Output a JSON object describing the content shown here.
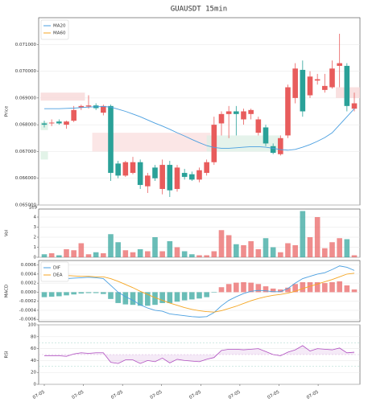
{
  "chart_data": [
    {
      "type": "candlestick",
      "title": "GUAUSDT  15min",
      "ylabel": "Price",
      "ylim": [
        0.065,
        0.072
      ],
      "yticks": [
        {
          "value": 0.065,
          "label": "0.065000"
        },
        {
          "value": 0.066,
          "label": "0.066000"
        },
        {
          "value": 0.067,
          "label": "0.067000"
        },
        {
          "value": 0.068,
          "label": "0.068000"
        },
        {
          "value": 0.069,
          "label": "0.069000"
        },
        {
          "value": 0.07,
          "label": "0.070000"
        },
        {
          "value": 0.071,
          "label": "0.071000"
        }
      ],
      "grid": true,
      "up_color": "#e85c5c",
      "down_color": "#2aa198",
      "open": [
        0.06805,
        0.06805,
        0.06812,
        0.068,
        0.06815,
        0.06865,
        0.06868,
        0.06872,
        0.06845,
        0.0687,
        0.06655,
        0.0661,
        0.0662,
        0.0666,
        0.0657,
        0.0664,
        0.0656,
        0.0665,
        0.0656,
        0.0662,
        0.06615,
        0.06595,
        0.0662,
        0.0666,
        0.06805,
        0.0684,
        0.0685,
        0.0682,
        0.0684,
        0.0677,
        0.0679,
        0.0672,
        0.0669,
        0.0676,
        0.069,
        0.07005,
        0.0691,
        0.06965,
        0.0693,
        0.0694,
        0.0702,
        0.0702,
        0.0686
      ],
      "high": [
        0.06815,
        0.0682,
        0.0682,
        0.06815,
        0.0687,
        0.06875,
        0.0691,
        0.0688,
        0.06875,
        0.06875,
        0.06665,
        0.06665,
        0.0668,
        0.0667,
        0.0662,
        0.0665,
        0.0667,
        0.06665,
        0.0665,
        0.06635,
        0.06625,
        0.0664,
        0.0667,
        0.0683,
        0.0685,
        0.0687,
        0.0687,
        0.0686,
        0.0686,
        0.0683,
        0.068,
        0.0673,
        0.0676,
        0.0695,
        0.0703,
        0.0704,
        0.07,
        0.0699,
        0.0699,
        0.0704,
        0.0714,
        0.0703,
        0.0692
      ],
      "low": [
        0.0679,
        0.06795,
        0.068,
        0.06785,
        0.0681,
        0.06855,
        0.0686,
        0.06855,
        0.06835,
        0.0659,
        0.066,
        0.06605,
        0.06615,
        0.0656,
        0.06545,
        0.0659,
        0.0654,
        0.0653,
        0.0655,
        0.06595,
        0.0659,
        0.06585,
        0.0661,
        0.0665,
        0.0676,
        0.0675,
        0.0676,
        0.068,
        0.0682,
        0.0676,
        0.0672,
        0.0669,
        0.06685,
        0.0675,
        0.0688,
        0.0683,
        0.069,
        0.0695,
        0.0692,
        0.06935,
        0.0694,
        0.0685,
        0.0685
      ],
      "close": [
        0.068,
        0.06808,
        0.06805,
        0.06812,
        0.06855,
        0.0687,
        0.06872,
        0.06862,
        0.0687,
        0.0662,
        0.0661,
        0.0666,
        0.0666,
        0.06575,
        0.0661,
        0.066,
        0.0665,
        0.06555,
        0.0664,
        0.06605,
        0.06595,
        0.0663,
        0.0666,
        0.068,
        0.0684,
        0.0685,
        0.0684,
        0.0685,
        0.06855,
        0.0682,
        0.0673,
        0.06695,
        0.0675,
        0.0694,
        0.0701,
        0.0685,
        0.0698,
        0.0697,
        0.06945,
        0.0701,
        0.0703,
        0.0687,
        0.0688
      ],
      "zones": [
        {
          "start": -0.5,
          "end": 5.5,
          "low": 0.0689,
          "high": 0.0692,
          "color": "#f7d6d6"
        },
        {
          "start": -0.5,
          "end": 0.5,
          "low": 0.0678,
          "high": 0.0681,
          "color": "#d8efe0"
        },
        {
          "start": -0.5,
          "end": 0.5,
          "low": 0.0667,
          "high": 0.067,
          "color": "#d8efe0"
        },
        {
          "start": 6.5,
          "end": 22.5,
          "low": 0.067,
          "high": 0.0677,
          "color": "#f9dede"
        },
        {
          "start": 22,
          "end": 32,
          "low": 0.067,
          "high": 0.0676,
          "color": "#dcefe4"
        },
        {
          "start": 39.5,
          "end": 42.8,
          "low": 0.069,
          "high": 0.0694,
          "color": "#f7d6d6"
        }
      ],
      "series": [
        {
          "name": "MA20",
          "color": "#4a9fe0",
          "values": [
            0.0686,
            0.0686,
            0.0686,
            0.06861,
            0.06862,
            0.06864,
            0.06866,
            0.06867,
            0.06868,
            0.06866,
            0.06858,
            0.0685,
            0.0684,
            0.0683,
            0.06818,
            0.06806,
            0.06795,
            0.06783,
            0.0677,
            0.06758,
            0.06745,
            0.06733,
            0.06722,
            0.06715,
            0.06712,
            0.06712,
            0.06714,
            0.06716,
            0.06718,
            0.06718,
            0.06716,
            0.06712,
            0.06707,
            0.06705,
            0.06708,
            0.06716,
            0.06726,
            0.06738,
            0.06752,
            0.0677,
            0.068,
            0.0683,
            0.0686
          ]
        },
        {
          "name": "MA60",
          "color": "#f5a623",
          "values": [
            null,
            null,
            null,
            null,
            null,
            null,
            null,
            null,
            null,
            null,
            null,
            null,
            null,
            null,
            null,
            null,
            null,
            null,
            null,
            null,
            null,
            null,
            null,
            null,
            null,
            null,
            null,
            null,
            null,
            null,
            null,
            null,
            null,
            null,
            null,
            null,
            null,
            null,
            null,
            null,
            null,
            null,
            null
          ]
        }
      ]
    },
    {
      "type": "bar",
      "ylabel": "Vol",
      "scale_label": "1e9",
      "ylim": [
        0,
        4.8
      ],
      "yticks": [
        0,
        1,
        2,
        3,
        4
      ],
      "values": [
        0.3,
        0.4,
        0.2,
        0.8,
        0.7,
        1.4,
        0.3,
        0.5,
        0.4,
        2.3,
        1.5,
        0.7,
        0.5,
        0.8,
        0.6,
        2.0,
        0.6,
        1.6,
        1.0,
        0.6,
        0.3,
        0.2,
        0.2,
        0.6,
        2.7,
        2.2,
        1.3,
        1.2,
        1.6,
        0.8,
        1.9,
        1.0,
        0.5,
        1.4,
        1.2,
        4.6,
        2.0,
        4.0,
        0.9,
        1.5,
        1.9,
        1.8,
        0.2
      ]
    },
    {
      "type": "macd",
      "ylabel": "MACD",
      "ylim": [
        -0.00065,
        0.0007
      ],
      "yticks": [
        {
          "value": -0.0006,
          "label": "-0.0006"
        },
        {
          "value": -0.0004,
          "label": "-0.0004"
        },
        {
          "value": -0.0002,
          "label": "-0.0002"
        },
        {
          "value": 0,
          "label": "0.0000"
        },
        {
          "value": 0.0002,
          "label": "0.0002"
        },
        {
          "value": 0.0004,
          "label": "0.0004"
        },
        {
          "value": 0.0006,
          "label": "0.0006"
        }
      ],
      "series": [
        {
          "name": "DIF",
          "color": "#4a9fe0",
          "values": [
            0.00032,
            0.00031,
            0.0003,
            0.0003,
            0.00031,
            0.00032,
            0.00033,
            0.00032,
            0.0003,
            0.00015,
            0,
            -0.0001,
            -0.00018,
            -0.00028,
            -0.00035,
            -0.0004,
            -0.00042,
            -0.00048,
            -0.0005,
            -0.00052,
            -0.00054,
            -0.00055,
            -0.00054,
            -0.00045,
            -0.0003,
            -0.00018,
            -0.0001,
            -3e-05,
            2e-05,
            4e-05,
            3e-05,
            1e-05,
            1e-05,
            8e-05,
            0.0002,
            0.0003,
            0.00035,
            0.0004,
            0.00043,
            0.0005,
            0.00058,
            0.00055,
            0.00048
          ]
        },
        {
          "name": "DEA",
          "color": "#f5a623",
          "values": [
            0.00043,
            0.00041,
            0.00039,
            0.00037,
            0.00036,
            0.00035,
            0.00035,
            0.00034,
            0.00034,
            0.0003,
            0.00024,
            0.00017,
            0.0001,
            2e-05,
            -5e-05,
            -0.00012,
            -0.00018,
            -0.00024,
            -0.00029,
            -0.00034,
            -0.00038,
            -0.00041,
            -0.00043,
            -0.00044,
            -0.00041,
            -0.00036,
            -0.00031,
            -0.00025,
            -0.00019,
            -0.00014,
            -0.0001,
            -7e-05,
            -5e-05,
            -2e-05,
            2e-05,
            8e-05,
            0.00013,
            0.00018,
            0.00023,
            0.00028,
            0.00034,
            0.0004,
            0.00042
          ]
        }
      ],
      "histogram": [
        -0.00011,
        -0.0001,
        -9e-05,
        -7e-05,
        -5e-05,
        -3e-05,
        -2e-05,
        -2e-05,
        -4e-05,
        -0.00015,
        -0.00024,
        -0.00027,
        -0.00028,
        -0.0003,
        -0.0003,
        -0.00028,
        -0.00024,
        -0.00024,
        -0.00021,
        -0.00018,
        -0.00016,
        -0.00014,
        -0.00011,
        -1e-05,
        0.00011,
        0.00018,
        0.00021,
        0.00022,
        0.00021,
        0.00018,
        0.00013,
        8e-05,
        6e-05,
        0.0001,
        0.00018,
        0.00022,
        0.00022,
        0.00022,
        0.0002,
        0.00022,
        0.00024,
        0.00015,
        6e-05
      ]
    },
    {
      "type": "rsi",
      "ylabel": "RSI",
      "ylim": [
        0,
        100
      ],
      "yticks": [
        0,
        20,
        40,
        60,
        80,
        100
      ],
      "bands": [
        30,
        50,
        70
      ],
      "color": "#b04fc0",
      "values": [
        48,
        48,
        48,
        47,
        51,
        53,
        52,
        53,
        53,
        37,
        35,
        41,
        41,
        35,
        40,
        38,
        44,
        36,
        42,
        40,
        39,
        38,
        42,
        45,
        57,
        59,
        59,
        58,
        59,
        60,
        55,
        50,
        48,
        54,
        58,
        65,
        56,
        60,
        59,
        58,
        61,
        53,
        54
      ],
      "xticks": [
        {
          "value": 0,
          "label": "07-05"
        },
        {
          "value": 5.3,
          "label": "07-05"
        },
        {
          "value": 10.6,
          "label": "07-05"
        },
        {
          "value": 15.9,
          "label": "07-05"
        },
        {
          "value": 21.2,
          "label": "07-05"
        },
        {
          "value": 26.5,
          "label": "07-05"
        },
        {
          "value": 31.8,
          "label": "07-05"
        },
        {
          "value": 37.1,
          "label": "07-05"
        }
      ]
    }
  ]
}
